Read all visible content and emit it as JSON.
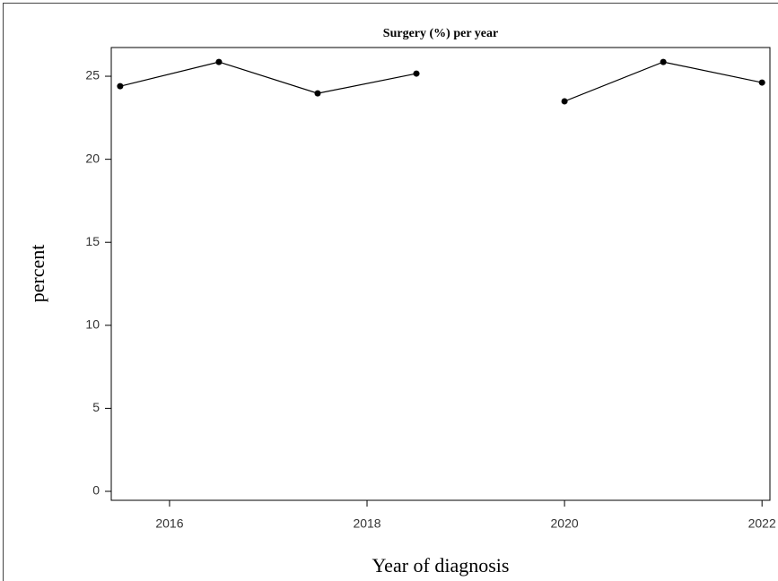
{
  "chart_data": {
    "type": "line",
    "title": "Surgery (%) per year",
    "x_label": "Year of diagnosis",
    "y_label": "percent",
    "x": [
      2015.5,
      2016.5,
      2017.5,
      2018.5,
      2019.5,
      2020,
      2021,
      2022
    ],
    "series": [
      {
        "color": "#000000",
        "values": [
          24.4,
          25.86,
          23.97,
          25.16,
          null,
          23.49,
          25.86,
          24.62
        ]
      }
    ],
    "xlim": [
      2015.41,
      2022.08
    ],
    "ylim": [
      -0.54,
      26.73
    ],
    "xticks": [
      2016,
      2018,
      2020,
      2022
    ],
    "yticks": [
      0,
      5,
      10,
      15,
      20,
      25
    ],
    "grid": false
  }
}
